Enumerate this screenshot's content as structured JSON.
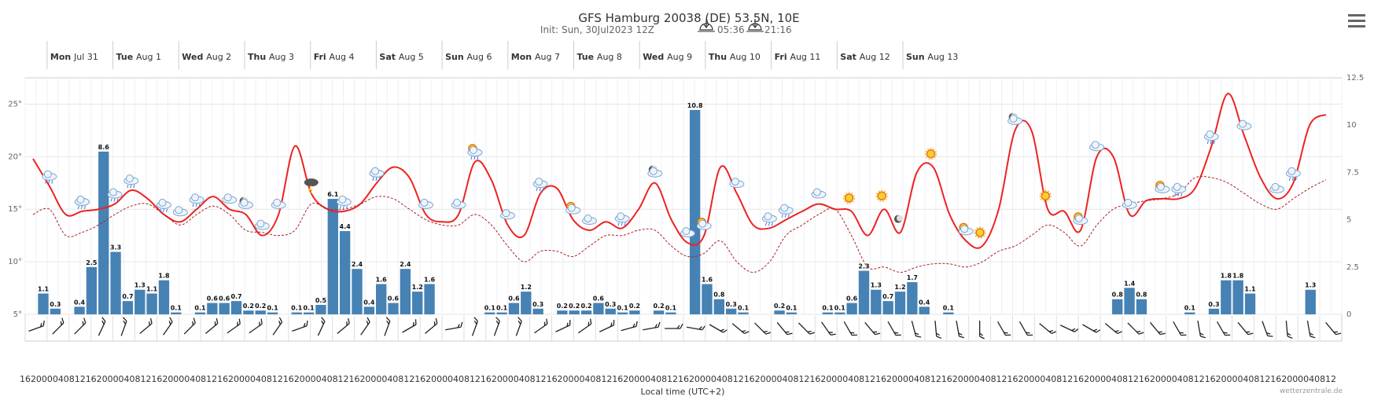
{
  "header": {
    "title": "GFS Hamburg 20038 (DE) 53.5N, 10E",
    "init": "Init: Sun, 30Jul2023 12Z",
    "sunrise": "05:36",
    "sunset": "21:16"
  },
  "menu_icon": "hamburger-menu-icon",
  "credit": "wetterzentrale.de",
  "chart_data": {
    "type": "combo",
    "xlabel": "Local time (UTC+2)",
    "x_start_hour": 16,
    "step_hours": 4,
    "days": [
      {
        "name": "Mon",
        "date": "Jul 31"
      },
      {
        "name": "Tue",
        "date": "Aug 1"
      },
      {
        "name": "Wed",
        "date": "Aug 2"
      },
      {
        "name": "Thu",
        "date": "Aug 3"
      },
      {
        "name": "Fri",
        "date": "Aug 4"
      },
      {
        "name": "Sat",
        "date": "Aug 5"
      },
      {
        "name": "Sun",
        "date": "Aug 6"
      },
      {
        "name": "Mon",
        "date": "Aug 7"
      },
      {
        "name": "Tue",
        "date": "Aug 8"
      },
      {
        "name": "Wed",
        "date": "Aug 9"
      },
      {
        "name": "Thu",
        "date": "Aug 10"
      },
      {
        "name": "Fri",
        "date": "Aug 11"
      },
      {
        "name": "Sat",
        "date": "Aug 12"
      },
      {
        "name": "Sun",
        "date": "Aug 13"
      }
    ],
    "x_tick_labels": [
      "16",
      "20",
      "00",
      "04",
      "08",
      "12",
      "16",
      "20",
      "00",
      "04",
      "08",
      "12",
      "16",
      "20",
      "00",
      "04",
      "08",
      "12",
      "16",
      "20",
      "00",
      "04",
      "08",
      "12",
      "16",
      "20",
      "00",
      "04",
      "08",
      "12",
      "16",
      "20",
      "00",
      "04",
      "08",
      "12",
      "16",
      "20",
      "00",
      "04",
      "08",
      "12",
      "16",
      "20",
      "00",
      "04",
      "08",
      "12",
      "16",
      "20",
      "00",
      "04",
      "08",
      "12",
      "16",
      "20",
      "00",
      "04",
      "08",
      "12",
      "16",
      "20",
      "00",
      "04",
      "08",
      "12",
      "16",
      "20",
      "00",
      "04",
      "08",
      "12",
      "16",
      "20",
      "00",
      "04",
      "08",
      "12",
      "16",
      "20",
      "00",
      "04",
      "08",
      "12",
      "16",
      "20",
      "00",
      "04",
      "08",
      "12",
      "16",
      "20",
      "00",
      "04",
      "08",
      "12",
      "16",
      "20",
      "00",
      "04",
      "08",
      "12",
      "16",
      "20",
      "00",
      "04",
      "08",
      "12",
      "16",
      "20",
      "00",
      "04",
      "08",
      "12",
      "16",
      "20",
      "00",
      "04",
      "08",
      "12",
      "16",
      "20",
      "00",
      "04",
      "08",
      "12",
      "16",
      "20",
      "00",
      "04",
      "08",
      "12"
    ],
    "temp_axis": {
      "label_suffix": "°",
      "min": 5,
      "max": 27.5,
      "ticks": [
        "5°",
        "10°",
        "15°",
        "20°",
        "25°"
      ]
    },
    "precip_axis": {
      "min": 0,
      "max": 12.5,
      "ticks": [
        "0",
        "2.5",
        "5",
        "7.5",
        "10",
        "12.5"
      ]
    },
    "series": [
      {
        "name": "Temperature",
        "type": "line",
        "color": "#ee2222",
        "values": [
          19.8,
          17.2,
          14.5,
          14.8,
          15.0,
          15.5,
          16.8,
          16.0,
          14.5,
          13.8,
          15.0,
          16.2,
          15.0,
          14.5,
          12.5,
          14.5,
          21.0,
          16.5,
          15.0,
          14.8,
          15.5,
          17.5,
          19.0,
          18.0,
          14.5,
          13.8,
          14.5,
          19.5,
          17.8,
          13.5,
          12.5,
          16.5,
          17.0,
          14.0,
          13.0,
          13.8,
          13.2,
          15.0,
          17.5,
          14.0,
          11.8,
          12.5,
          19.0,
          16.5,
          13.5,
          13.2,
          14.0,
          14.8,
          15.5,
          15.0,
          14.8,
          12.5,
          15.0,
          12.8,
          18.5,
          19.0,
          14.5,
          12.0,
          11.5,
          15.0,
          22.5,
          22.5,
          15.0,
          14.8,
          13.0,
          20.0,
          20.0,
          14.5,
          15.8,
          16.0,
          16.0,
          17.0,
          21.0,
          26.0,
          22.0,
          18.0,
          16.0,
          17.5,
          23.0,
          24.0
        ]
      },
      {
        "name": "Dew point",
        "type": "line",
        "color": "#aa2222",
        "dashed": true,
        "values": [
          14.5,
          15.0,
          12.5,
          12.8,
          13.5,
          14.5,
          15.3,
          15.5,
          14.5,
          13.5,
          14.5,
          15.3,
          14.5,
          13.0,
          12.8,
          12.5,
          13.0,
          15.5,
          15.0,
          15.0,
          15.5,
          16.2,
          16.0,
          15.0,
          14.0,
          13.5,
          13.5,
          14.5,
          13.5,
          11.5,
          10.0,
          11.0,
          11.0,
          10.5,
          11.5,
          12.5,
          12.5,
          13.0,
          13.0,
          11.5,
          10.5,
          10.8,
          12.0,
          10.0,
          9.0,
          10.0,
          12.5,
          13.5,
          14.5,
          15.0,
          12.5,
          9.5,
          9.5,
          9.0,
          9.5,
          9.8,
          9.8,
          9.5,
          10.0,
          11.0,
          11.5,
          12.5,
          13.5,
          12.8,
          11.5,
          13.5,
          15.0,
          15.5,
          15.8,
          16.0,
          16.5,
          18.0,
          18.0,
          17.5,
          16.5,
          15.5,
          15.0,
          16.0,
          17.0,
          17.8
        ]
      },
      {
        "name": "Precipitation",
        "type": "bar",
        "color": "#4682b4",
        "values": [
          0,
          1.1,
          0.3,
          0,
          0.4,
          2.5,
          8.6,
          3.3,
          0.7,
          1.3,
          1.1,
          1.8,
          0.1,
          0,
          0.1,
          0.6,
          0.6,
          0.7,
          0.2,
          0.2,
          0.1,
          0,
          0.1,
          0.1,
          0.5,
          6.1,
          4.4,
          2.4,
          0.4,
          1.6,
          0.6,
          2.4,
          1.2,
          1.6,
          0,
          0,
          0,
          0,
          0.1,
          0.1,
          0.6,
          1.2,
          0.3,
          0,
          0.2,
          0.2,
          0.2,
          0.6,
          0.3,
          0.1,
          0.2,
          0,
          0.2,
          0.1,
          0,
          10.8,
          1.6,
          0.8,
          0.3,
          0.1,
          0,
          0,
          0.2,
          0.1,
          0,
          0,
          0.1,
          0.1,
          0.6,
          2.3,
          1.3,
          0.7,
          1.2,
          1.7,
          0.4,
          0,
          0.1,
          0,
          0,
          0,
          0,
          0,
          0,
          0,
          0,
          0,
          0,
          0,
          0,
          0,
          0.8,
          1.4,
          0.8,
          0,
          0,
          0,
          0.1,
          0,
          0.3,
          1.8,
          1.8,
          1.1,
          0,
          0,
          0,
          0,
          1.3
        ]
      }
    ],
    "bar_labels": [
      "",
      "1.1",
      "0.3",
      "",
      "0.4",
      "2.5",
      "8.6",
      "3.3",
      "0.7",
      "1.3",
      "1.1",
      "1.8",
      "0.1",
      "",
      "0.1",
      "0.6",
      "0.6",
      "0.7",
      "0.2",
      "0.2",
      "0.1",
      "",
      "0.1",
      "0.1",
      "0.5",
      "6.1",
      "4.4",
      "2.4",
      "0.4",
      "1.6",
      "0.6",
      "2.4",
      "1.2",
      "1.6",
      "",
      "",
      "",
      "",
      "0.1",
      "0.1",
      "0.6",
      "1.2",
      "0.3",
      "",
      "0.2",
      "0.2",
      "0.2",
      "0.6",
      "0.3",
      "0.1",
      "0.2",
      "",
      "0.2",
      "0.1",
      "",
      "10.8",
      "1.6",
      "0.8",
      "0.3",
      "0.1",
      "",
      "",
      "0.2",
      "0.1",
      "",
      "",
      "0.1",
      "0.1",
      "0.6",
      "2.3",
      "1.3",
      "0.7",
      "1.2",
      "1.7",
      "0.4",
      "",
      "0.1",
      "",
      "",
      "",
      "",
      "",
      "",
      "",
      "",
      "",
      "",
      "",
      "",
      "",
      "0.8",
      "1.4",
      "0.8",
      "",
      "",
      "",
      "0.1",
      "",
      "0.3",
      "1.8",
      "1.8",
      "1.1",
      "",
      "",
      "",
      "",
      "1.3"
    ],
    "weather_icons": [
      {
        "i": 1,
        "kind": "cloud-rain"
      },
      {
        "i": 3,
        "kind": "cloud"
      },
      {
        "i": 4,
        "kind": "cloud-rain"
      },
      {
        "i": 6,
        "kind": "cloud-rain"
      },
      {
        "i": 7,
        "kind": "cloud-rain"
      },
      {
        "i": 9,
        "kind": "cloud-rain"
      },
      {
        "i": 10,
        "kind": "cloud"
      },
      {
        "i": 12,
        "kind": "cloud-rain"
      },
      {
        "i": 14,
        "kind": "cloud"
      },
      {
        "i": 15,
        "kind": "moon-cloud"
      },
      {
        "i": 16,
        "kind": "cloud"
      },
      {
        "i": 18,
        "kind": "cloud"
      },
      {
        "i": 20,
        "kind": "thunder"
      },
      {
        "i": 22,
        "kind": "cloud-rain"
      },
      {
        "i": 24,
        "kind": "cloud-rain"
      },
      {
        "i": 25,
        "kind": "cloud-rain"
      },
      {
        "i": 28,
        "kind": "cloud"
      },
      {
        "i": 30,
        "kind": "cloud"
      },
      {
        "i": 31,
        "kind": "cloud-rain"
      },
      {
        "i": 32,
        "kind": "sun-cloud"
      },
      {
        "i": 34,
        "kind": "cloud"
      },
      {
        "i": 36,
        "kind": "cloud-rain"
      },
      {
        "i": 38,
        "kind": "sun-cloud"
      },
      {
        "i": 40,
        "kind": "cloud"
      },
      {
        "i": 42,
        "kind": "cloud-rain"
      },
      {
        "i": 44,
        "kind": "moon-cloud"
      },
      {
        "i": 46,
        "kind": "cloud"
      },
      {
        "i": 48,
        "kind": "sun-cloud"
      },
      {
        "i": 50,
        "kind": "cloud"
      },
      {
        "i": 52,
        "kind": "cloud-rain"
      },
      {
        "i": 54,
        "kind": "cloud-rain"
      },
      {
        "i": 56,
        "kind": "cloud"
      },
      {
        "i": 58,
        "kind": "sun"
      },
      {
        "i": 60,
        "kind": "sun"
      },
      {
        "i": 62,
        "kind": "moon"
      },
      {
        "i": 64,
        "kind": "sun"
      },
      {
        "i": 66,
        "kind": "sun-cloud"
      },
      {
        "i": 68,
        "kind": "sun"
      },
      {
        "i": 70,
        "kind": "moon-cloud"
      },
      {
        "i": 72,
        "kind": "sun"
      },
      {
        "i": 74,
        "kind": "sun-cloud"
      },
      {
        "i": 76,
        "kind": "cloud"
      },
      {
        "i": 78,
        "kind": "cloud"
      },
      {
        "i": 80,
        "kind": "sun-cloud"
      },
      {
        "i": 82,
        "kind": "cloud-rain"
      },
      {
        "i": 84,
        "kind": "cloud-rain"
      },
      {
        "i": 86,
        "kind": "cloud"
      },
      {
        "i": 88,
        "kind": "cloud"
      },
      {
        "i": 90,
        "kind": "cloud-rain"
      }
    ],
    "wind_directions_deg": [
      250,
      225,
      225,
      205,
      200,
      230,
      215,
      225,
      230,
      235,
      235,
      215,
      250,
      205,
      230,
      215,
      200,
      240,
      230,
      260,
      200,
      200,
      200,
      235,
      245,
      235,
      245,
      255,
      260,
      270,
      280,
      300,
      310,
      315,
      320,
      315,
      325,
      330,
      320,
      330,
      345,
      355,
      350,
      0,
      330,
      330,
      310,
      295,
      300,
      310,
      315,
      320,
      330,
      350,
      330,
      320,
      340,
      355,
      350,
      320
    ]
  }
}
